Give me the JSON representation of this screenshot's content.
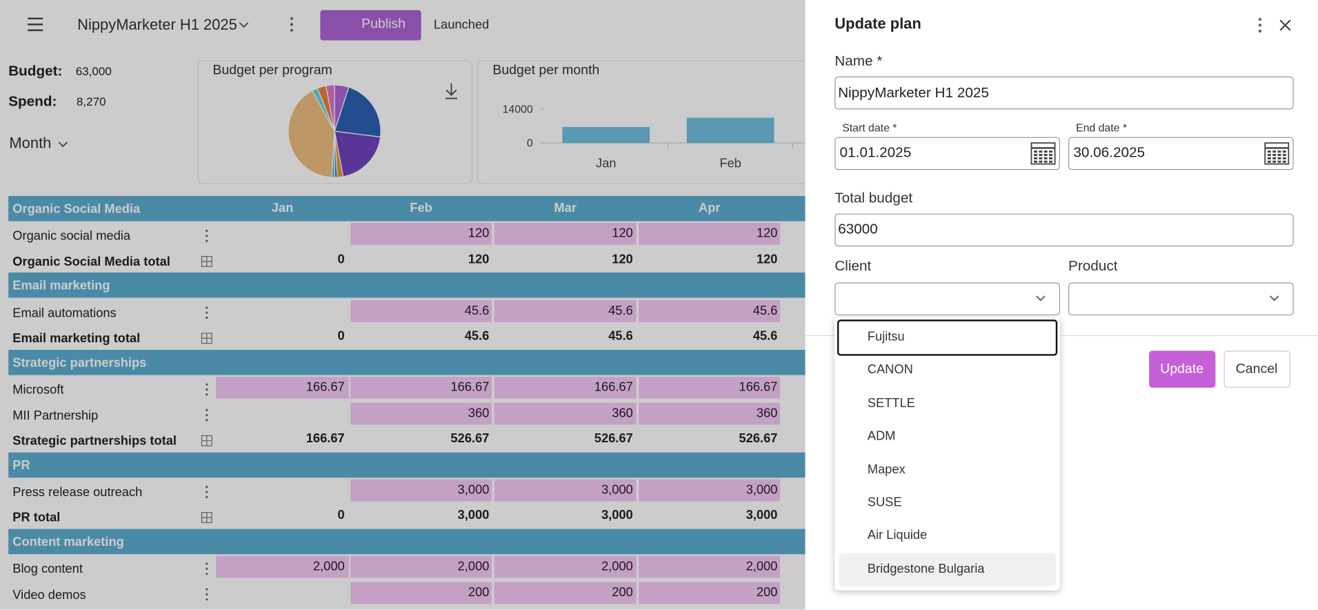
{
  "header": {
    "plan_name": "NippyMarketer H1 2025",
    "publish": "Publish",
    "status": "Launched"
  },
  "summary": {
    "budget_label": "Budget:",
    "budget": "63,000",
    "spend_label": "Spend:",
    "spend": "8,270",
    "period": "Month"
  },
  "chart_data": [
    {
      "type": "pie",
      "title": "Budget per program",
      "values": [
        5,
        22,
        20,
        2,
        1,
        1,
        41,
        2,
        3,
        3
      ],
      "colors": [
        "#b067d6",
        "#2c5fb3",
        "#6d44bd",
        "#e8942a",
        "#3b7fd9",
        "#4fbfae",
        "#edbd80",
        "#6fd0de",
        "#e8803a",
        "#d677c6"
      ]
    },
    {
      "type": "bar",
      "title": "Budget per month",
      "categories": [
        "Jan",
        "Feb"
      ],
      "values": [
        6650,
        10500
      ],
      "color": "#70c0e0",
      "ylim": [
        0,
        14000
      ],
      "yticks": [
        0,
        14000
      ]
    }
  ],
  "table": {
    "columns": [
      "Jan",
      "Feb",
      "Mar",
      "Apr"
    ],
    "groups": [
      {
        "name": "Organic Social Media",
        "items": [
          {
            "label": "Organic social media",
            "cells": [
              null,
              "120",
              "120",
              "120"
            ]
          }
        ],
        "total": {
          "label": "Organic Social Media total",
          "cells": [
            "0",
            "120",
            "120",
            "120"
          ]
        }
      },
      {
        "name": "Email marketing",
        "items": [
          {
            "label": "Email automations",
            "cells": [
              null,
              "45.6",
              "45.6",
              "45.6"
            ]
          }
        ],
        "total": {
          "label": "Email marketing total",
          "cells": [
            "0",
            "45.6",
            "45.6",
            "45.6"
          ]
        }
      },
      {
        "name": "Strategic partnerships",
        "items": [
          {
            "label": "Microsoft",
            "cells": [
              "166.67",
              "166.67",
              "166.67",
              "166.67"
            ]
          },
          {
            "label": "MII Partnership",
            "cells": [
              null,
              "360",
              "360",
              "360"
            ]
          }
        ],
        "total": {
          "label": "Strategic partnerships total",
          "cells": [
            "166.67",
            "526.67",
            "526.67",
            "526.67"
          ]
        }
      },
      {
        "name": "PR",
        "items": [
          {
            "label": "Press release outreach",
            "cells": [
              null,
              "3,000",
              "3,000",
              "3,000"
            ]
          }
        ],
        "total": {
          "label": "PR total",
          "cells": [
            "0",
            "3,000",
            "3,000",
            "3,000"
          ]
        }
      },
      {
        "name": "Content marketing",
        "items": [
          {
            "label": "Blog content",
            "cells": [
              "2,000",
              "2,000",
              "2,000",
              "2,000"
            ]
          },
          {
            "label": "Video demos",
            "cells": [
              null,
              "200",
              "200",
              "200"
            ]
          }
        ]
      }
    ]
  },
  "dialog": {
    "title": "Update plan",
    "name_label": "Name *",
    "name_value": "NippyMarketer H1 2025",
    "start_label": "Start date *",
    "start_value": "01.01.2025",
    "end_label": "End date *",
    "end_value": "30.06.2025",
    "budget_label": "Total budget",
    "budget_value": "63000",
    "client_label": "Client",
    "product_label": "Product",
    "client_options": [
      "Fujitsu",
      "CANON",
      "SETTLE",
      "ADM",
      "Mapex",
      "SUSE",
      "Air Liquide",
      "Bridgestone Bulgaria"
    ],
    "update": "Update",
    "cancel": "Cancel"
  }
}
